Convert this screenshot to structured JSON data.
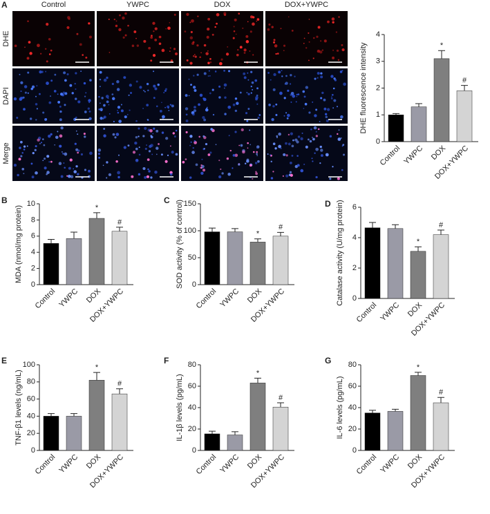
{
  "image_panel": {
    "panel_label": "A",
    "columns": [
      "Control",
      "YWPC",
      "DOX",
      "DOX+YWPC"
    ],
    "rows": [
      "DHE",
      "DAPI",
      "Merge"
    ]
  },
  "chart_data": [
    {
      "type": "bar",
      "ylabel": "DHE fluorescence intensity",
      "categories": [
        "Control",
        "YWPC",
        "DOX",
        "DOX+YWPC"
      ],
      "values": [
        1.0,
        1.3,
        3.1,
        1.9
      ],
      "errors": [
        0.05,
        0.12,
        0.3,
        0.2
      ],
      "markers": [
        null,
        null,
        "*",
        "#"
      ],
      "colors": [
        "#000000",
        "#9a9aa6",
        "#7f7f7f",
        "#d4d4d4"
      ],
      "ylim": [
        0,
        4
      ],
      "yticks": [
        0,
        1,
        2,
        3,
        4
      ]
    },
    {
      "type": "bar",
      "panel_label": "B",
      "ylabel": "MDA (nmol/mg protein)",
      "categories": [
        "Control",
        "YWPC",
        "DOX",
        "DOX+YWPC"
      ],
      "values": [
        5.1,
        5.7,
        8.2,
        6.6
      ],
      "errors": [
        0.5,
        0.8,
        0.7,
        0.5
      ],
      "markers": [
        null,
        null,
        "*",
        "#"
      ],
      "colors": [
        "#000000",
        "#9a9aa6",
        "#7f7f7f",
        "#d4d4d4"
      ],
      "ylim": [
        0,
        10
      ],
      "yticks": [
        0,
        2,
        4,
        6,
        8,
        10
      ]
    },
    {
      "type": "bar",
      "panel_label": "C",
      "ylabel": "SOD activity (% of control)",
      "categories": [
        "Control",
        "YWPC",
        "DOX",
        "DOX+YWPC"
      ],
      "values": [
        98,
        98,
        79,
        90
      ],
      "errors": [
        7,
        6,
        6,
        7
      ],
      "markers": [
        null,
        null,
        "*",
        "#"
      ],
      "colors": [
        "#000000",
        "#9a9aa6",
        "#7f7f7f",
        "#d4d4d4"
      ],
      "ylim": [
        0,
        150
      ],
      "yticks": [
        0,
        50,
        100,
        150
      ]
    },
    {
      "type": "bar",
      "panel_label": "D",
      "ylabel": "Catalase activity (U/mg protein)",
      "categories": [
        "Control",
        "YWPC",
        "DOX",
        "DOX+YWPC"
      ],
      "values": [
        4.65,
        4.6,
        3.1,
        4.2
      ],
      "errors": [
        0.35,
        0.25,
        0.3,
        0.3
      ],
      "markers": [
        null,
        null,
        "*",
        "#"
      ],
      "colors": [
        "#000000",
        "#9a9aa6",
        "#7f7f7f",
        "#d4d4d4"
      ],
      "ylim": [
        0,
        6
      ],
      "yticks": [
        0,
        2,
        4,
        6
      ]
    },
    {
      "type": "bar",
      "panel_label": "E",
      "ylabel": "TNF-β1 levels (ng/mL)",
      "categories": [
        "Control",
        "YWPC",
        "DOX",
        "DOX+YWPC"
      ],
      "values": [
        40,
        40,
        82,
        66
      ],
      "errors": [
        3,
        3,
        9,
        6
      ],
      "markers": [
        null,
        null,
        "*",
        "#"
      ],
      "colors": [
        "#000000",
        "#9a9aa6",
        "#7f7f7f",
        "#d4d4d4"
      ],
      "ylim": [
        0,
        100
      ],
      "yticks": [
        0,
        20,
        40,
        60,
        80,
        100
      ]
    },
    {
      "type": "bar",
      "panel_label": "F",
      "ylabel": "IL-1β levels (pg/mL)",
      "categories": [
        "Control",
        "YWPC",
        "DOX",
        "DOX+YWPC"
      ],
      "values": [
        15.5,
        14.5,
        63,
        40.5
      ],
      "errors": [
        2.5,
        3,
        4.5,
        4
      ],
      "markers": [
        null,
        null,
        "*",
        "#"
      ],
      "colors": [
        "#000000",
        "#9a9aa6",
        "#7f7f7f",
        "#d4d4d4"
      ],
      "ylim": [
        0,
        80
      ],
      "yticks": [
        0,
        20,
        40,
        60,
        80
      ]
    },
    {
      "type": "bar",
      "panel_label": "G",
      "ylabel": "IL-6 levels (pg/mL)",
      "categories": [
        "Control",
        "YWPC",
        "DOX",
        "DOX+YWPC"
      ],
      "values": [
        35,
        36.5,
        70,
        44.5
      ],
      "errors": [
        2.5,
        2,
        3,
        5
      ],
      "markers": [
        null,
        null,
        "*",
        "#"
      ],
      "colors": [
        "#000000",
        "#9a9aa6",
        "#7f7f7f",
        "#d4d4d4"
      ],
      "ylim": [
        0,
        80
      ],
      "yticks": [
        0,
        20,
        40,
        60,
        80
      ]
    }
  ]
}
